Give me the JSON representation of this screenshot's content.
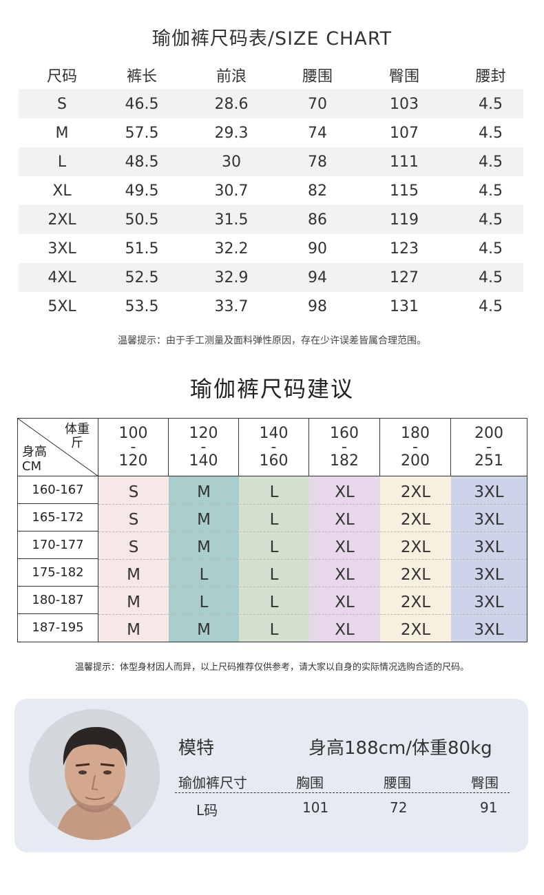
{
  "size_chart": {
    "title": "瑜伽裤尺码表/SIZE CHART",
    "headers": [
      "尺码",
      "裤长",
      "前浪",
      "腰围",
      "臀围",
      "腰封"
    ],
    "rows": [
      [
        "S",
        "46.5",
        "28.6",
        "70",
        "103",
        "4.5"
      ],
      [
        "M",
        "57.5",
        "29.3",
        "74",
        "107",
        "4.5"
      ],
      [
        "L",
        "48.5",
        "30",
        "78",
        "111",
        "4.5"
      ],
      [
        "XL",
        "49.5",
        "30.7",
        "82",
        "115",
        "4.5"
      ],
      [
        "2XL",
        "50.5",
        "31.5",
        "86",
        "119",
        "4.5"
      ],
      [
        "3XL",
        "51.5",
        "32.2",
        "90",
        "123",
        "4.5"
      ],
      [
        "4XL",
        "52.5",
        "32.9",
        "94",
        "127",
        "4.5"
      ],
      [
        "5XL",
        "53.5",
        "33.7",
        "98",
        "131",
        "4.5"
      ]
    ],
    "note": "温馨提示：由于手工测量及面料弹性原因，存在少许误差皆属合理范围。"
  },
  "recommend": {
    "title": "瑜伽裤尺码建议",
    "corner_weight": [
      "体重",
      "斤"
    ],
    "corner_height": [
      "身高",
      "CM"
    ],
    "weight_ranges": [
      {
        "from": "100",
        "sep": "-",
        "to": "120"
      },
      {
        "from": "120",
        "sep": "-",
        "to": "140"
      },
      {
        "from": "140",
        "sep": "-",
        "to": "160"
      },
      {
        "from": "160",
        "sep": "-",
        "to": "182"
      },
      {
        "from": "180",
        "sep": "-",
        "to": "200"
      },
      {
        "from": "200",
        "sep": "-",
        "to": "251"
      }
    ],
    "height_ranges": [
      "160-167",
      "165-172",
      "170-177",
      "175-182",
      "180-187",
      "187-195"
    ],
    "grid": [
      [
        "S",
        "M",
        "L",
        "XL",
        "2XL",
        "3XL"
      ],
      [
        "S",
        "M",
        "L",
        "XL",
        "2XL",
        "3XL"
      ],
      [
        "S",
        "M",
        "L",
        "XL",
        "2XL",
        "3XL"
      ],
      [
        "M",
        "L",
        "L",
        "XL",
        "2XL",
        "3XL"
      ],
      [
        "M",
        "L",
        "L",
        "XL",
        "2XL",
        "3XL"
      ],
      [
        "M",
        "M",
        "L",
        "XL",
        "2XL",
        "3XL"
      ]
    ],
    "column_colors": [
      "#f6e8e6",
      "#a9cccc",
      "#d2e2cf",
      "#e8d6ea",
      "#f7f0df",
      "#cdd3e9"
    ],
    "note": "温馨提示：体型身材因人而异，以上尺码推荐仅供参考，请大家以自身的实际情况选购合适的尺码。"
  },
  "model": {
    "label": "模特",
    "stats": "身高188cm/体重80kg",
    "headers": [
      "瑜伽裤尺寸",
      "胸围",
      "腰围",
      "臀围"
    ],
    "values": [
      "L码",
      "101",
      "72",
      "91"
    ]
  }
}
